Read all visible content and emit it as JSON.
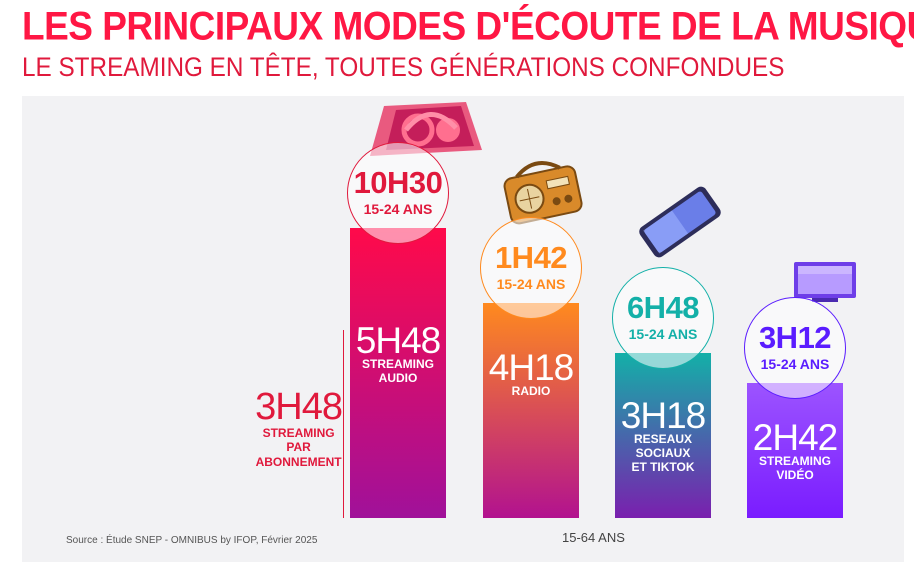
{
  "title": "LES PRINCIPAUX MODES D'ÉCOUTE DE LA MUSIQUE",
  "subtitle": "LE STREAMING EN TÊTE, TOUTES GÉNÉRATIONS CONFONDUES",
  "source": "Source : Étude SNEP - OMNIBUS by IFOP, Février 2025",
  "colors": {
    "accent": "#ff1744",
    "audio_top": "#ff0a4a",
    "audio_bottom": "#a0119a",
    "radio_top": "#ff8a1e",
    "radio_bottom": "#b2128f",
    "social_top": "#13b0a8",
    "social_bottom": "#7a1fae",
    "video_top": "#9c54ff",
    "video_bottom": "#7a1cff"
  },
  "chart_data": {
    "type": "bar",
    "xlabel": "15-64 ANS",
    "categories": [
      "STREAMING AUDIO",
      "RADIO",
      "RESEAUX SOCIAUX ET TIKTOK",
      "STREAMING VIDÉO"
    ],
    "values_hours": [
      5.8,
      4.3,
      3.3,
      2.7
    ],
    "bars": [
      {
        "value": "5H48",
        "label_lines": [
          "STREAMING",
          "AUDIO"
        ],
        "hours": 5.8,
        "circle_value": "10H30",
        "circle_sub": "15-24 ANS",
        "circle_color": "#e0193c",
        "icon": "headphones-icon"
      },
      {
        "value": "4H18",
        "label_lines": [
          "RADIO"
        ],
        "hours": 4.3,
        "circle_value": "1H42",
        "circle_sub": "15-24 ANS",
        "circle_color": "#ff8a1e",
        "icon": "radio-icon"
      },
      {
        "value": "3H18",
        "label_lines": [
          "RESEAUX",
          "SOCIAUX",
          "ET TIKTOK"
        ],
        "hours": 3.3,
        "circle_value": "6H48",
        "circle_sub": "15-24 ANS",
        "circle_color": "#13b0a8",
        "icon": "smartphone-icon"
      },
      {
        "value": "2H42",
        "label_lines": [
          "STREAMING",
          "VIDÉO"
        ],
        "hours": 2.7,
        "circle_value": "3H12",
        "circle_sub": "15-24 ANS",
        "circle_color": "#5a1cff",
        "icon": "tv-icon"
      }
    ],
    "subscription": {
      "value": "3H48",
      "label_lines": [
        "STREAMING",
        "PAR",
        "ABONNEMENT"
      ],
      "hours": 3.8
    }
  }
}
